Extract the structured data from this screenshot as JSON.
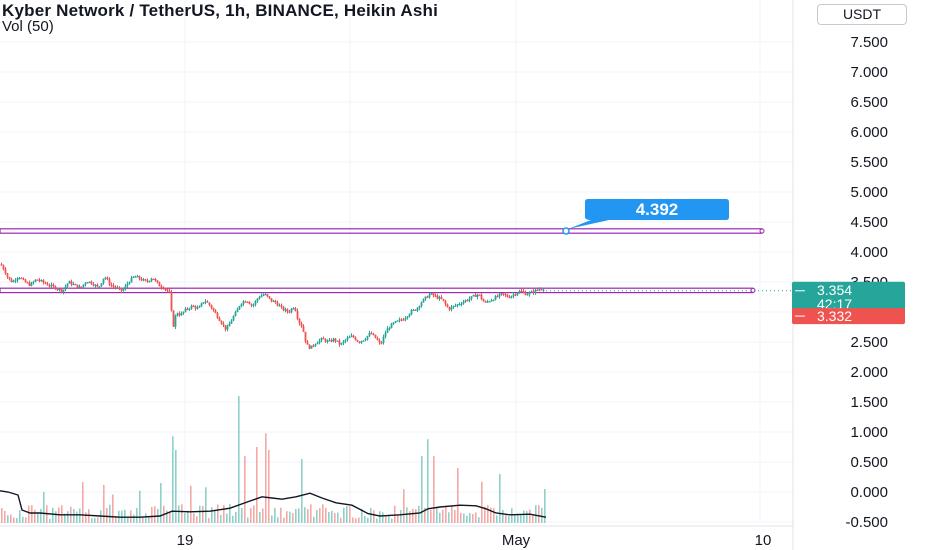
{
  "header": {
    "title": "Kyber Network / TetherUS, 1h, BINANCE, Heikin Ashi",
    "volume_label": "Vol (50)"
  },
  "currency_button": "USDT",
  "colors": {
    "up": "#26a69a",
    "down": "#ef5350",
    "level_line": "#9c27b0",
    "callout": "#2196f3",
    "vol_up": "#8fd0c8",
    "vol_down": "#f5a9a7",
    "grid": "#f0f3fa",
    "text": "#131722"
  },
  "chart_data": {
    "type": "candlestick",
    "title": "Kyber Network / TetherUS, 1h, BINANCE, Heikin Ashi",
    "y_axis": {
      "ticks": [
        "7.500",
        "7.000",
        "6.500",
        "6.000",
        "5.500",
        "5.000",
        "4.500",
        "4.000",
        "3.500",
        "2.500",
        "2.000",
        "1.500",
        "1.000",
        "0.500",
        "0.000",
        "-0.500"
      ],
      "ylim": [
        -0.6,
        7.9
      ]
    },
    "x_axis": {
      "ticks": [
        "19",
        "May",
        "10"
      ]
    },
    "price_path": [
      [
        0,
        3.8
      ],
      [
        4,
        3.7
      ],
      [
        8,
        3.55
      ],
      [
        12,
        3.5
      ],
      [
        18,
        3.6
      ],
      [
        24,
        3.5
      ],
      [
        30,
        3.45
      ],
      [
        36,
        3.55
      ],
      [
        42,
        3.5
      ],
      [
        48,
        3.45
      ],
      [
        56,
        3.4
      ],
      [
        62,
        3.35
      ],
      [
        68,
        3.5
      ],
      [
        74,
        3.45
      ],
      [
        80,
        3.4
      ],
      [
        86,
        3.52
      ],
      [
        92,
        3.48
      ],
      [
        98,
        3.4
      ],
      [
        104,
        3.6
      ],
      [
        110,
        3.45
      ],
      [
        116,
        3.4
      ],
      [
        122,
        3.35
      ],
      [
        128,
        3.5
      ],
      [
        134,
        3.6
      ],
      [
        140,
        3.55
      ],
      [
        146,
        3.5
      ],
      [
        152,
        3.58
      ],
      [
        158,
        3.45
      ],
      [
        164,
        3.4
      ],
      [
        170,
        3.3
      ],
      [
        172,
        2.7
      ],
      [
        176,
        3.0
      ],
      [
        180,
        2.95
      ],
      [
        186,
        3.05
      ],
      [
        192,
        3.1
      ],
      [
        198,
        3.05
      ],
      [
        204,
        3.2
      ],
      [
        210,
        3.1
      ],
      [
        216,
        2.95
      ],
      [
        220,
        2.85
      ],
      [
        226,
        2.7
      ],
      [
        232,
        2.9
      ],
      [
        236,
        3.0
      ],
      [
        240,
        3.15
      ],
      [
        246,
        3.2
      ],
      [
        252,
        3.1
      ],
      [
        258,
        3.25
      ],
      [
        264,
        3.3
      ],
      [
        270,
        3.2
      ],
      [
        276,
        3.15
      ],
      [
        282,
        3.05
      ],
      [
        288,
        3.0
      ],
      [
        294,
        3.1
      ],
      [
        298,
        2.85
      ],
      [
        302,
        2.75
      ],
      [
        306,
        2.45
      ],
      [
        310,
        2.4
      ],
      [
        316,
        2.5
      ],
      [
        322,
        2.55
      ],
      [
        328,
        2.5
      ],
      [
        334,
        2.55
      ],
      [
        340,
        2.45
      ],
      [
        346,
        2.55
      ],
      [
        352,
        2.6
      ],
      [
        358,
        2.5
      ],
      [
        364,
        2.55
      ],
      [
        370,
        2.65
      ],
      [
        376,
        2.55
      ],
      [
        380,
        2.45
      ],
      [
        386,
        2.7
      ],
      [
        392,
        2.8
      ],
      [
        398,
        2.85
      ],
      [
        404,
        2.9
      ],
      [
        410,
        3.0
      ],
      [
        416,
        3.05
      ],
      [
        420,
        3.15
      ],
      [
        426,
        3.25
      ],
      [
        430,
        3.3
      ],
      [
        436,
        3.25
      ],
      [
        442,
        3.2
      ],
      [
        448,
        3.05
      ],
      [
        454,
        3.1
      ],
      [
        460,
        3.15
      ],
      [
        466,
        3.2
      ],
      [
        472,
        3.25
      ],
      [
        478,
        3.3
      ],
      [
        484,
        3.15
      ],
      [
        490,
        3.2
      ],
      [
        496,
        3.25
      ],
      [
        502,
        3.3
      ],
      [
        508,
        3.25
      ],
      [
        514,
        3.3
      ],
      [
        520,
        3.35
      ],
      [
        526,
        3.3
      ],
      [
        532,
        3.33
      ],
      [
        538,
        3.38
      ],
      [
        544,
        3.4
      ]
    ],
    "volume_line": [
      [
        0,
        0.02
      ],
      [
        8,
        0.0
      ],
      [
        18,
        -0.05
      ],
      [
        22,
        -0.3
      ],
      [
        30,
        -0.35
      ],
      [
        40,
        -0.35
      ],
      [
        60,
        -0.38
      ],
      [
        80,
        -0.38
      ],
      [
        100,
        -0.4
      ],
      [
        120,
        -0.42
      ],
      [
        140,
        -0.42
      ],
      [
        160,
        -0.4
      ],
      [
        172,
        -0.32
      ],
      [
        190,
        -0.33
      ],
      [
        210,
        -0.32
      ],
      [
        230,
        -0.27
      ],
      [
        250,
        -0.15
      ],
      [
        262,
        -0.08
      ],
      [
        272,
        -0.1
      ],
      [
        282,
        -0.12
      ],
      [
        296,
        -0.08
      ],
      [
        310,
        -0.02
      ],
      [
        322,
        -0.1
      ],
      [
        336,
        -0.18
      ],
      [
        352,
        -0.22
      ],
      [
        368,
        -0.36
      ],
      [
        380,
        -0.4
      ],
      [
        400,
        -0.38
      ],
      [
        420,
        -0.35
      ],
      [
        428,
        -0.28
      ],
      [
        440,
        -0.25
      ],
      [
        460,
        -0.22
      ],
      [
        476,
        -0.23
      ],
      [
        486,
        -0.28
      ],
      [
        496,
        -0.35
      ],
      [
        510,
        -0.38
      ],
      [
        530,
        -0.37
      ],
      [
        546,
        -0.42
      ]
    ],
    "horizontal_levels": [
      {
        "value": 4.35,
        "label": "4.392"
      },
      {
        "value": 3.36
      }
    ],
    "price_labels": {
      "current": "3.354",
      "countdown": "42:17",
      "previous": "3.332"
    },
    "callout": "4.392"
  }
}
